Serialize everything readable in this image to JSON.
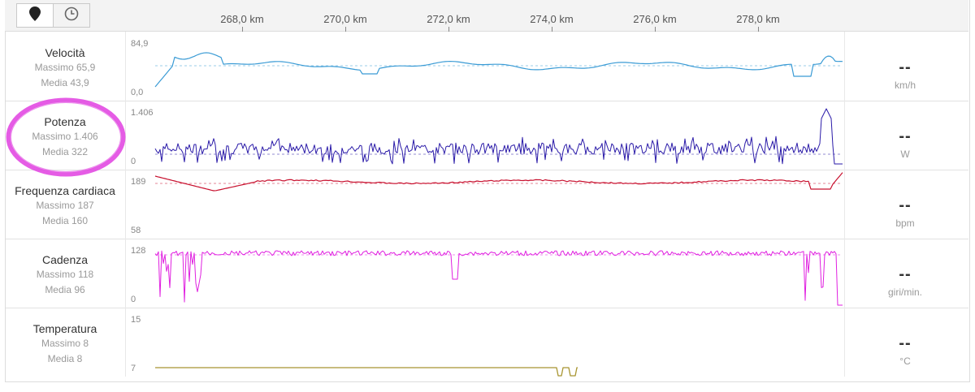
{
  "toolbar": {
    "buttons": [
      {
        "name": "map-pin-icon"
      },
      {
        "name": "clock-icon"
      }
    ]
  },
  "axis": {
    "ticks": [
      "268,0 km",
      "270,0 km",
      "272,0 km",
      "274,0 km",
      "276,0 km",
      "278,0 km"
    ]
  },
  "colors": {
    "speed": "#3a9bd5",
    "power": "#2a1aa8",
    "heart": "#c8102e",
    "cadence": "#e020e0",
    "temperature": "#a89530",
    "highlight": "#e040e0"
  },
  "metrics": {
    "velocita": {
      "title": "Velocità",
      "max": "Massimo 65,9",
      "avg": "Media 43,9",
      "ymax": "84,9",
      "ymin": "0,0",
      "value": "--",
      "unit": "km/h"
    },
    "potenza": {
      "title": "Potenza",
      "max": "Massimo 1.406",
      "avg": "Media 322",
      "ymax": "1.406",
      "ymin": "0",
      "value": "--",
      "unit": "W"
    },
    "frequenza": {
      "title": "Frequenza cardiaca",
      "max": "Massimo 187",
      "avg": "Media 160",
      "ymax": "189",
      "ymin": "58",
      "value": "--",
      "unit": "bpm"
    },
    "cadenza": {
      "title": "Cadenza",
      "max": "Massimo 118",
      "avg": "Media 96",
      "ymax": "128",
      "ymin": "0",
      "value": "--",
      "unit": "giri/min."
    },
    "temperatura": {
      "title": "Temperatura",
      "max": "Massimo 8",
      "avg": "Media 8",
      "ymax": "15",
      "ymin": "7",
      "value": "--",
      "unit": "°C"
    }
  }
}
